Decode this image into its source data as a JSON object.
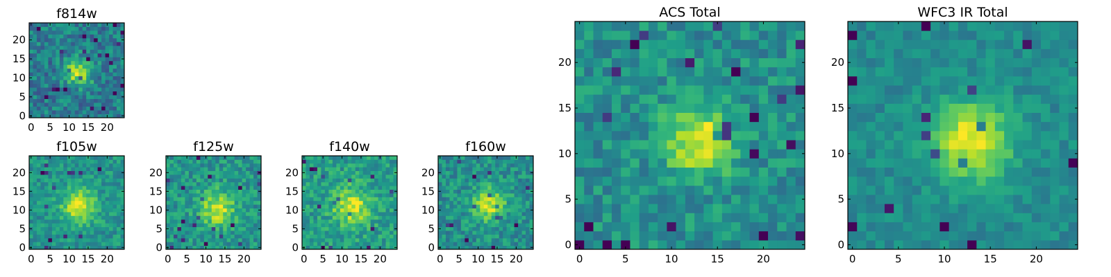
{
  "chart_data": [
    {
      "type": "heatmap",
      "title": "f814w",
      "x_ticks": [
        "0",
        "5",
        "10",
        "15",
        "20"
      ],
      "y_ticks": [
        "0",
        "5",
        "10",
        "15",
        "20"
      ],
      "xlim": [
        -0.5,
        24.5
      ],
      "ylim": [
        -0.5,
        24.5
      ],
      "grid_size": 25,
      "colormap": "viridis",
      "peak": [
        12.5,
        11.5
      ],
      "peak_width": 2.5,
      "noise": 0.17,
      "base": 0.42,
      "amp": 0.5,
      "seed": 11
    },
    {
      "type": "heatmap",
      "title": "f105w",
      "x_ticks": [
        "0",
        "5",
        "10",
        "15",
        "20"
      ],
      "y_ticks": [
        "0",
        "5",
        "10",
        "15",
        "20"
      ],
      "xlim": [
        -0.5,
        24.5
      ],
      "ylim": [
        -0.5,
        24.5
      ],
      "grid_size": 25,
      "colormap": "viridis",
      "peak": [
        12.5,
        11.0
      ],
      "peak_width": 3.2,
      "noise": 0.13,
      "base": 0.52,
      "amp": 0.42,
      "seed": 22
    },
    {
      "type": "heatmap",
      "title": "f125w",
      "x_ticks": [
        "0",
        "5",
        "10",
        "15",
        "20"
      ],
      "y_ticks": [
        "0",
        "5",
        "10",
        "15",
        "20"
      ],
      "xlim": [
        -0.5,
        24.5
      ],
      "ylim": [
        -0.5,
        24.5
      ],
      "grid_size": 25,
      "colormap": "viridis",
      "peak": [
        13.0,
        10.5
      ],
      "peak_width": 3.2,
      "noise": 0.15,
      "base": 0.52,
      "amp": 0.4,
      "seed": 33
    },
    {
      "type": "heatmap",
      "title": "f140w",
      "x_ticks": [
        "0",
        "5",
        "10",
        "15",
        "20"
      ],
      "y_ticks": [
        "0",
        "5",
        "10",
        "15",
        "20"
      ],
      "xlim": [
        -0.5,
        24.5
      ],
      "ylim": [
        -0.5,
        24.5
      ],
      "grid_size": 25,
      "colormap": "viridis",
      "peak": [
        12.5,
        11.0
      ],
      "peak_width": 3.4,
      "noise": 0.15,
      "base": 0.55,
      "amp": 0.4,
      "seed": 44
    },
    {
      "type": "heatmap",
      "title": "f160w",
      "x_ticks": [
        "0",
        "5",
        "10",
        "15",
        "20"
      ],
      "y_ticks": [
        "0",
        "5",
        "10",
        "15",
        "20"
      ],
      "xlim": [
        -0.5,
        24.5
      ],
      "ylim": [
        -0.5,
        24.5
      ],
      "grid_size": 25,
      "colormap": "viridis",
      "peak": [
        13.0,
        11.5
      ],
      "peak_width": 3.0,
      "noise": 0.15,
      "base": 0.5,
      "amp": 0.42,
      "seed": 55
    },
    {
      "type": "heatmap",
      "title": "ACS Total",
      "x_ticks": [
        "0",
        "5",
        "10",
        "15",
        "20"
      ],
      "y_ticks": [
        "0",
        "5",
        "10",
        "15",
        "20"
      ],
      "xlim": [
        -0.5,
        24.5
      ],
      "ylim": [
        -0.5,
        24.5
      ],
      "grid_size": 25,
      "colormap": "viridis",
      "peak": [
        13.0,
        11.5
      ],
      "peak_width": 2.6,
      "noise": 0.14,
      "base": 0.5,
      "amp": 0.48,
      "seed": 66
    },
    {
      "type": "heatmap",
      "title": "WFC3 IR Total",
      "x_ticks": [
        "0",
        "5",
        "10",
        "15",
        "20"
      ],
      "y_ticks": [
        "0",
        "5",
        "10",
        "15",
        "20"
      ],
      "xlim": [
        -0.5,
        24.5
      ],
      "ylim": [
        -0.5,
        24.5
      ],
      "grid_size": 25,
      "colormap": "viridis",
      "peak": [
        13.0,
        11.5
      ],
      "peak_width": 3.0,
      "noise": 0.09,
      "base": 0.48,
      "amp": 0.5,
      "seed": 77
    }
  ]
}
